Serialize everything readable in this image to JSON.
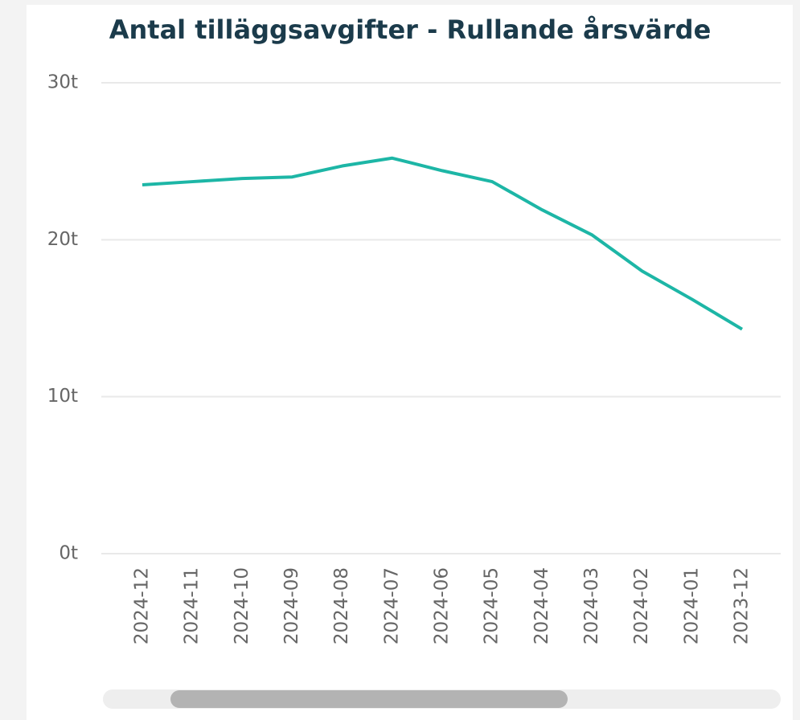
{
  "chart_data": {
    "type": "line",
    "title": "Antal tilläggsavgifter - Rullande årsvärde",
    "categories": [
      "2024-12",
      "2024-11",
      "2024-10",
      "2024-09",
      "2024-08",
      "2024-07",
      "2024-06",
      "2024-05",
      "2024-04",
      "2024-03",
      "2024-02",
      "2024-01",
      "2023-12"
    ],
    "series": [
      {
        "name": "Antal tilläggsavgifter",
        "color": "#1db6a6",
        "values": [
          23500,
          23700,
          23900,
          24000,
          24700,
          25200,
          24400,
          23700,
          21900,
          20300,
          18000,
          16200,
          14300
        ]
      }
    ],
    "ylim": [
      0,
      30000
    ],
    "yticks": [
      {
        "value": 0,
        "label": "0t"
      },
      {
        "value": 10000,
        "label": "10t"
      },
      {
        "value": 20000,
        "label": "20t"
      },
      {
        "value": 30000,
        "label": "30t"
      }
    ],
    "grid": true
  }
}
